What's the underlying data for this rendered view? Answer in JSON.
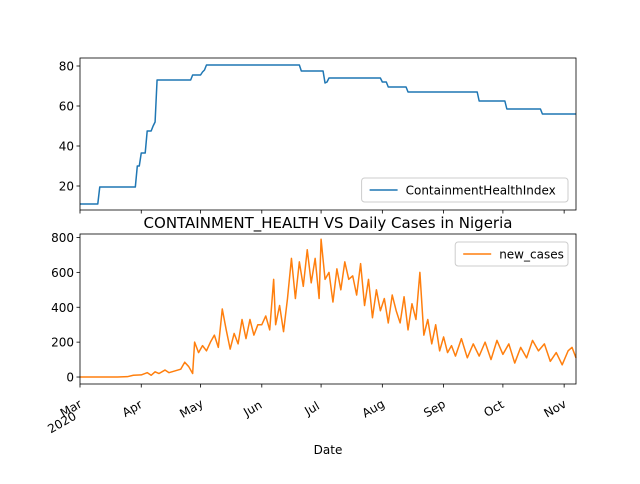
{
  "chart_data": [
    {
      "type": "line",
      "title": "",
      "xlabel": "",
      "ylabel": "",
      "ylim": [
        8,
        84
      ],
      "yticks": [
        20,
        40,
        60,
        80
      ],
      "legend": "bottom-right",
      "series": [
        {
          "name": "ContainmentHealthIndex",
          "color": "#1f77b4",
          "points": [
            [
              "2020-03-01",
              11
            ],
            [
              "2020-03-10",
              11
            ],
            [
              "2020-03-11",
              19.5
            ],
            [
              "2020-03-29",
              19.5
            ],
            [
              "2020-03-30",
              30
            ],
            [
              "2020-03-31",
              30
            ],
            [
              "2020-04-01",
              36.5
            ],
            [
              "2020-04-03",
              36.5
            ],
            [
              "2020-04-04",
              47.5
            ],
            [
              "2020-04-06",
              47.5
            ],
            [
              "2020-04-07",
              50
            ],
            [
              "2020-04-08",
              52
            ],
            [
              "2020-04-09",
              73
            ],
            [
              "2020-04-26",
              73
            ],
            [
              "2020-04-27",
              75.5
            ],
            [
              "2020-05-01",
              75.5
            ],
            [
              "2020-05-02",
              77
            ],
            [
              "2020-05-03",
              78
            ],
            [
              "2020-05-04",
              80.5
            ],
            [
              "2020-06-20",
              80.5
            ],
            [
              "2020-06-21",
              77.5
            ],
            [
              "2020-07-02",
              77.5
            ],
            [
              "2020-07-03",
              71.5
            ],
            [
              "2020-07-04",
              72
            ],
            [
              "2020-07-05",
              74
            ],
            [
              "2020-07-31",
              74
            ],
            [
              "2020-08-01",
              72
            ],
            [
              "2020-08-03",
              72
            ],
            [
              "2020-08-04",
              69.5
            ],
            [
              "2020-08-13",
              69.5
            ],
            [
              "2020-08-14",
              67
            ],
            [
              "2020-09-18",
              67
            ],
            [
              "2020-09-19",
              62.5
            ],
            [
              "2020-10-02",
              62.5
            ],
            [
              "2020-10-03",
              58.5
            ],
            [
              "2020-10-20",
              58.5
            ],
            [
              "2020-10-21",
              56
            ],
            [
              "2020-11-07",
              56
            ]
          ]
        }
      ]
    },
    {
      "type": "line",
      "title": "CONTAINMENT_HEALTH VS Daily Cases in Nigeria",
      "xlabel": "Date",
      "ylabel": "",
      "ylim": [
        -40,
        820
      ],
      "yticks": [
        0,
        200,
        400,
        600,
        800
      ],
      "legend": "top-right",
      "x_range": [
        "2020-03-01",
        "2020-11-07"
      ],
      "x_ticks": [
        "2020-03-01",
        "2020-04-01",
        "2020-05-01",
        "2020-06-01",
        "2020-07-01",
        "2020-08-01",
        "2020-09-01",
        "2020-10-01",
        "2020-11-01"
      ],
      "x_tick_labels": [
        "Mar\n2020",
        "Apr",
        "May",
        "Jun",
        "Jul",
        "Aug",
        "Sep",
        "Oct",
        "Nov"
      ],
      "series": [
        {
          "name": "new_cases",
          "color": "#ff7f0e",
          "points": [
            [
              "2020-03-01",
              0
            ],
            [
              "2020-03-20",
              0
            ],
            [
              "2020-03-25",
              2
            ],
            [
              "2020-03-28",
              10
            ],
            [
              "2020-04-01",
              12
            ],
            [
              "2020-04-04",
              25
            ],
            [
              "2020-04-06",
              10
            ],
            [
              "2020-04-08",
              30
            ],
            [
              "2020-04-10",
              20
            ],
            [
              "2020-04-13",
              40
            ],
            [
              "2020-04-15",
              25
            ],
            [
              "2020-04-18",
              35
            ],
            [
              "2020-04-21",
              45
            ],
            [
              "2020-04-23",
              85
            ],
            [
              "2020-04-25",
              60
            ],
            [
              "2020-04-27",
              20
            ],
            [
              "2020-04-28",
              200
            ],
            [
              "2020-04-30",
              140
            ],
            [
              "2020-05-02",
              180
            ],
            [
              "2020-05-04",
              150
            ],
            [
              "2020-05-06",
              200
            ],
            [
              "2020-05-08",
              240
            ],
            [
              "2020-05-10",
              170
            ],
            [
              "2020-05-12",
              390
            ],
            [
              "2020-05-14",
              270
            ],
            [
              "2020-05-16",
              160
            ],
            [
              "2020-05-18",
              250
            ],
            [
              "2020-05-20",
              190
            ],
            [
              "2020-05-22",
              330
            ],
            [
              "2020-05-24",
              220
            ],
            [
              "2020-05-26",
              330
            ],
            [
              "2020-05-28",
              240
            ],
            [
              "2020-05-30",
              300
            ],
            [
              "2020-06-01",
              300
            ],
            [
              "2020-06-03",
              350
            ],
            [
              "2020-06-05",
              270
            ],
            [
              "2020-06-07",
              560
            ],
            [
              "2020-06-08",
              300
            ],
            [
              "2020-06-10",
              410
            ],
            [
              "2020-06-12",
              260
            ],
            [
              "2020-06-14",
              450
            ],
            [
              "2020-06-16",
              680
            ],
            [
              "2020-06-18",
              450
            ],
            [
              "2020-06-20",
              660
            ],
            [
              "2020-06-22",
              520
            ],
            [
              "2020-06-24",
              730
            ],
            [
              "2020-06-26",
              540
            ],
            [
              "2020-06-28",
              680
            ],
            [
              "2020-06-30",
              450
            ],
            [
              "2020-07-01",
              790
            ],
            [
              "2020-07-03",
              560
            ],
            [
              "2020-07-05",
              600
            ],
            [
              "2020-07-07",
              430
            ],
            [
              "2020-07-09",
              620
            ],
            [
              "2020-07-11",
              500
            ],
            [
              "2020-07-13",
              660
            ],
            [
              "2020-07-15",
              560
            ],
            [
              "2020-07-17",
              580
            ],
            [
              "2020-07-19",
              470
            ],
            [
              "2020-07-21",
              650
            ],
            [
              "2020-07-23",
              410
            ],
            [
              "2020-07-25",
              560
            ],
            [
              "2020-07-27",
              340
            ],
            [
              "2020-07-29",
              500
            ],
            [
              "2020-07-31",
              380
            ],
            [
              "2020-08-02",
              450
            ],
            [
              "2020-08-04",
              310
            ],
            [
              "2020-08-06",
              470
            ],
            [
              "2020-08-08",
              380
            ],
            [
              "2020-08-10",
              310
            ],
            [
              "2020-08-12",
              460
            ],
            [
              "2020-08-14",
              270
            ],
            [
              "2020-08-16",
              420
            ],
            [
              "2020-08-18",
              330
            ],
            [
              "2020-08-20",
              600
            ],
            [
              "2020-08-22",
              240
            ],
            [
              "2020-08-24",
              330
            ],
            [
              "2020-08-26",
              190
            ],
            [
              "2020-08-28",
              300
            ],
            [
              "2020-08-30",
              150
            ],
            [
              "2020-09-01",
              230
            ],
            [
              "2020-09-03",
              140
            ],
            [
              "2020-09-05",
              180
            ],
            [
              "2020-09-07",
              120
            ],
            [
              "2020-09-10",
              220
            ],
            [
              "2020-09-13",
              110
            ],
            [
              "2020-09-16",
              190
            ],
            [
              "2020-09-19",
              120
            ],
            [
              "2020-09-22",
              200
            ],
            [
              "2020-09-25",
              100
            ],
            [
              "2020-09-28",
              210
            ],
            [
              "2020-10-01",
              130
            ],
            [
              "2020-10-04",
              190
            ],
            [
              "2020-10-07",
              80
            ],
            [
              "2020-10-10",
              170
            ],
            [
              "2020-10-13",
              110
            ],
            [
              "2020-10-16",
              210
            ],
            [
              "2020-10-19",
              150
            ],
            [
              "2020-10-22",
              190
            ],
            [
              "2020-10-25",
              90
            ],
            [
              "2020-10-28",
              140
            ],
            [
              "2020-10-31",
              70
            ],
            [
              "2020-11-03",
              150
            ],
            [
              "2020-11-05",
              170
            ],
            [
              "2020-11-07",
              110
            ]
          ]
        }
      ]
    }
  ]
}
